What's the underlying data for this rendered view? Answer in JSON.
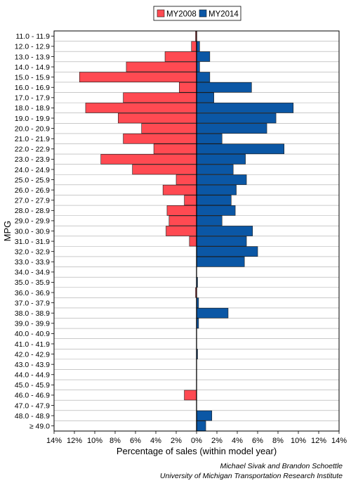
{
  "chart_data": {
    "type": "bar",
    "orientation": "horizontal",
    "layout": "diverging",
    "ylabel": "MPG",
    "xlabel": "Percentage of sales (within model year)",
    "x_tick_labels": [
      "14%",
      "12%",
      "10%",
      "8%",
      "6%",
      "4%",
      "2%",
      "0%",
      "2%",
      "4%",
      "6%",
      "8%",
      "10%",
      "12%",
      "14%"
    ],
    "xlim": [
      -14,
      14
    ],
    "grid": true,
    "legend_position": "top-center",
    "categories": [
      "11.0 - 11.9",
      "12.0 - 12.9",
      "13.0 - 13.9",
      "14.0 - 14.9",
      "15.0 - 15.9",
      "16.0 - 16.9",
      "17.0 - 17.9",
      "18.0 - 18.9",
      "19.0 - 19.9",
      "20.0 - 20.9",
      "21.0 - 21.9",
      "22.0 - 22.9",
      "23.0 - 23.9",
      "24.0 - 24.9",
      "25.0 - 25.9",
      "26.0 - 26.9",
      "27.0 - 27.9",
      "28.0 - 28.9",
      "29.0 - 29.9",
      "30.0 - 30.9",
      "31.0 - 31.9",
      "32.0 - 32.9",
      "33.0 - 33.9",
      "34.0 - 34.9",
      "35.0 - 35.9",
      "36.0 - 36.9",
      "37.0 - 37.9",
      "38.0 - 38.9",
      "39.0 - 39.9",
      "40.0 - 40.9",
      "41.0 - 41.9",
      "42.0 - 42.9",
      "43.0 - 43.9",
      "44.0 - 44.9",
      "45.0 - 45.9",
      "46.0 - 46.9",
      "47.0 - 47.9",
      "48.0 - 48.9",
      "≥ 49.0"
    ],
    "series": [
      {
        "name": "MY2008",
        "color": "#ff4a52",
        "side": "left",
        "values": [
          0.1,
          0.5,
          3.1,
          6.9,
          11.5,
          1.7,
          7.2,
          10.9,
          7.7,
          5.4,
          7.2,
          4.2,
          9.4,
          6.3,
          2.0,
          3.3,
          1.2,
          2.9,
          2.7,
          3.0,
          0.7,
          0,
          0,
          0,
          0,
          0.1,
          0,
          0,
          0,
          0,
          0,
          0,
          0,
          0,
          0,
          1.2,
          0,
          0,
          0
        ]
      },
      {
        "name": "MY2014",
        "color": "#0b57a5",
        "side": "right",
        "values": [
          0,
          0.3,
          1.3,
          0.3,
          1.3,
          5.4,
          1.7,
          9.5,
          7.8,
          6.9,
          2.5,
          8.6,
          4.8,
          3.6,
          4.9,
          3.9,
          3.4,
          3.8,
          2.5,
          5.5,
          4.9,
          6.0,
          4.7,
          0,
          0.1,
          0,
          0.2,
          3.1,
          0.2,
          0,
          0,
          0.1,
          0,
          0,
          0,
          0,
          0,
          1.5,
          0.9
        ]
      }
    ]
  },
  "credits": {
    "line1": "Michael Sivak and Brandon Schoettle",
    "line2": "University of Michigan Transportation Research Institute"
  }
}
